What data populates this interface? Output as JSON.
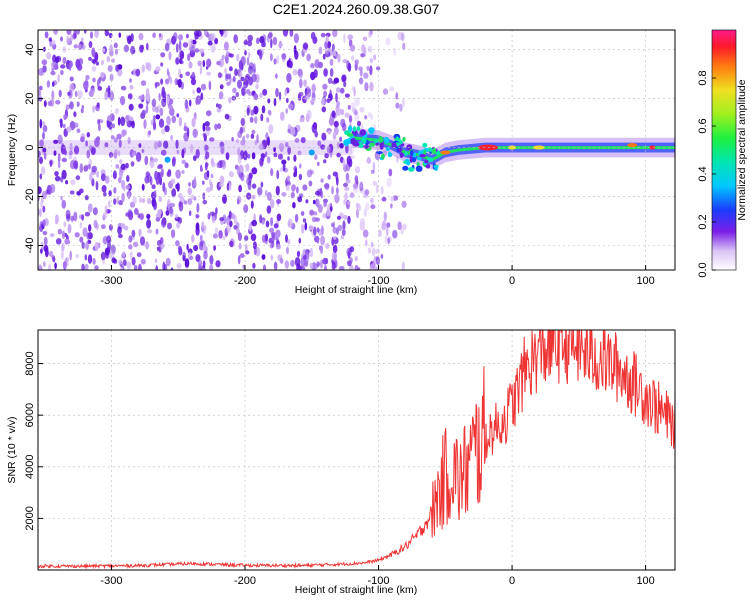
{
  "title": "C2E1.2024.260.09.38.G07",
  "colors": {
    "spectrum": "#6a0fe0",
    "spectrum_light": "#c9a8f4",
    "snr_line": "#ee3333",
    "background": "#ffffff",
    "axes": "#000000"
  },
  "chart_data": [
    {
      "type": "heatmap",
      "xlabel": "Height of straight line (km)",
      "ylabel": "Frequency (Hz)",
      "xlim": [
        -355,
        122
      ],
      "ylim": [
        -50,
        48
      ],
      "xticks": [
        "-300",
        "-200",
        "-100",
        "0",
        "100"
      ],
      "yticks": [
        "40",
        "20",
        "0",
        "-20",
        "-40"
      ],
      "grid": true,
      "colorbar": {
        "label": "Normalized spectral amplitude",
        "range": [
          0,
          1
        ],
        "ticks": [
          "0.0",
          "0.2",
          "0.4",
          "0.6",
          "0.8"
        ]
      },
      "ridge": [
        {
          "x": -120,
          "y": 4
        },
        {
          "x": -100,
          "y": 3
        },
        {
          "x": -90,
          "y": 1
        },
        {
          "x": -80,
          "y": -2
        },
        {
          "x": -70,
          "y": -3
        },
        {
          "x": -60,
          "y": -5
        },
        {
          "x": -50,
          "y": -2
        },
        {
          "x": -40,
          "y": -1
        },
        {
          "x": -20,
          "y": 0
        },
        {
          "x": 0,
          "y": 0
        },
        {
          "x": 50,
          "y": 0
        },
        {
          "x": 100,
          "y": 0
        },
        {
          "x": 122,
          "y": 0
        }
      ]
    },
    {
      "type": "line",
      "xlabel": "Height of straight line (km)",
      "ylabel": "SNR (10 * v/v)",
      "xlim": [
        -355,
        122
      ],
      "ylim": [
        0,
        9300
      ],
      "xticks": [
        "-300",
        "-200",
        "-100",
        "0",
        "100"
      ],
      "yticks": [
        "2000",
        "4000",
        "6000",
        "8000"
      ],
      "grid": true,
      "series": [
        {
          "x": [
            -355,
            -320,
            -280,
            -240,
            -200,
            -160,
            -130,
            -110,
            -100,
            -90,
            -80,
            -70,
            -60,
            -55,
            -50,
            -45,
            -40,
            -35,
            -30,
            -25,
            -20,
            -15,
            -10,
            -5,
            0,
            5,
            10,
            20,
            30,
            40,
            50,
            60,
            70,
            80,
            90,
            100,
            110,
            120
          ],
          "y": [
            150,
            150,
            170,
            250,
            180,
            170,
            220,
            280,
            380,
            600,
            900,
            1400,
            2200,
            3000,
            3600,
            4000,
            3400,
            3800,
            4300,
            4800,
            5200,
            5400,
            5600,
            5900,
            6400,
            7000,
            7800,
            8400,
            8700,
            8800,
            8600,
            8300,
            8100,
            7800,
            7300,
            6800,
            6200,
            5700
          ]
        }
      ]
    }
  ]
}
